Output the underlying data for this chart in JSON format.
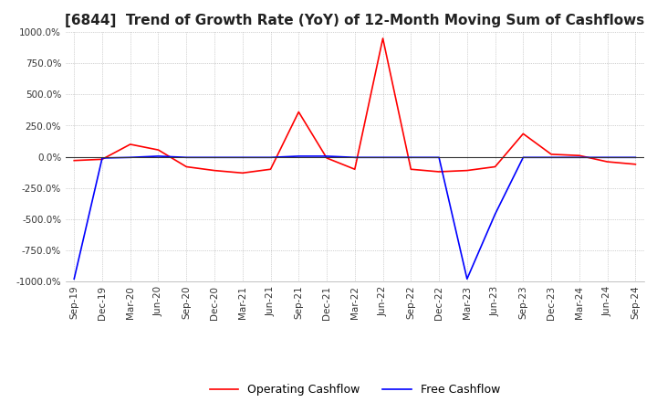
{
  "title": "[6844]  Trend of Growth Rate (YoY) of 12-Month Moving Sum of Cashflows",
  "title_fontsize": 11,
  "background_color": "#ffffff",
  "plot_bg_color": "#ffffff",
  "grid_color": "#aaaaaa",
  "ylim": [
    -1000,
    1000
  ],
  "yticks": [
    -1000,
    -750,
    -500,
    -250,
    0,
    250,
    500,
    750,
    1000
  ],
  "x_labels": [
    "Sep-19",
    "Dec-19",
    "Mar-20",
    "Jun-20",
    "Sep-20",
    "Dec-20",
    "Mar-21",
    "Jun-21",
    "Sep-21",
    "Dec-21",
    "Mar-22",
    "Jun-22",
    "Sep-22",
    "Dec-22",
    "Mar-23",
    "Jun-23",
    "Sep-23",
    "Dec-23",
    "Mar-24",
    "Jun-24",
    "Sep-24"
  ],
  "operating_cashflow": [
    -30,
    -20,
    100,
    55,
    -80,
    -110,
    -130,
    -100,
    360,
    -10,
    -100,
    950,
    -100,
    -120,
    -110,
    -80,
    185,
    20,
    10,
    -40,
    -60
  ],
  "free_cashflow": [
    -980,
    -10,
    -5,
    5,
    -5,
    -5,
    -5,
    -5,
    5,
    5,
    -5,
    -5,
    -5,
    -5,
    -980,
    -460,
    -5,
    -5,
    -5,
    -5,
    -5
  ],
  "op_color": "#ff0000",
  "fc_color": "#0000ff",
  "legend_labels": [
    "Operating Cashflow",
    "Free Cashflow"
  ]
}
